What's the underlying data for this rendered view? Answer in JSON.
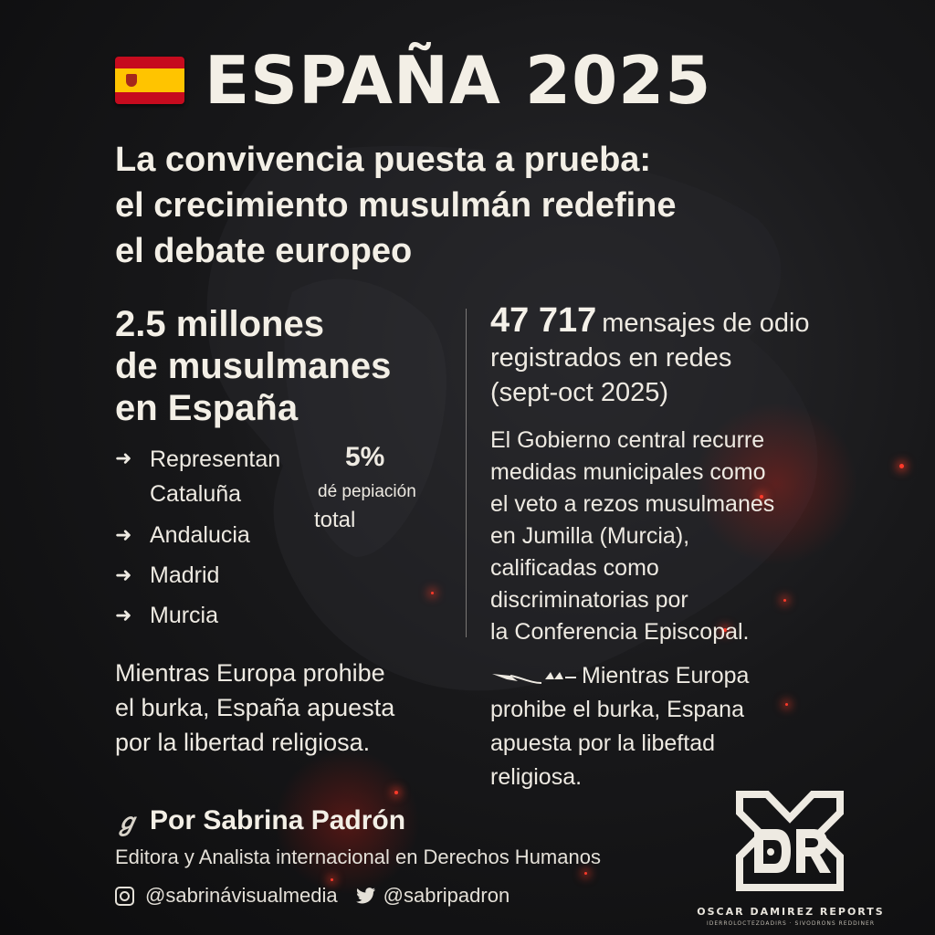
{
  "colors": {
    "background": "#111113",
    "text": "#f3efe6",
    "ember": "#ff3a2a",
    "flag_red": "#c60b1e",
    "flag_yellow": "#ffc400"
  },
  "header": {
    "flag_icon": "spain-flag-icon",
    "title": "ESPAÑA 2025",
    "subtitle_lines": [
      "La convivencia puesta a prueba:",
      "el crecimiento musulmán redefine",
      "el debate europeo"
    ]
  },
  "left": {
    "stat_lines": [
      "2.5 millones",
      "de musulmanes",
      "en España"
    ],
    "regions": [
      {
        "icon": "arrow-right-icon",
        "lines": [
          "Representan",
          "Cataluña"
        ]
      },
      {
        "icon": "arrow-right-icon",
        "lines": [
          "Andalucia"
        ]
      },
      {
        "icon": "arrow-right-icon",
        "lines": [
          "Madrid"
        ]
      },
      {
        "icon": "arrow-right-icon",
        "lines": [
          "Murcia"
        ]
      }
    ],
    "percentage": {
      "value": "5%",
      "label": "dé pepiación",
      "label2": "total"
    },
    "closing_lines": [
      "Mientras Europa prohibe",
      "el burka, España apuesta",
      "por la libertad religiosa."
    ]
  },
  "right": {
    "hate_number": "47 717",
    "hate_lines": [
      "mensajes de odio",
      "registrados en redes",
      "(sept-oct 2025)"
    ],
    "gov_lines": [
      "El Gobierno central recurre",
      "medidas municipales como",
      "el veto a rezos musulmanes",
      "en Jumilla (Murcia),",
      "calificadas como",
      "discriminatorias por",
      "la Conferencia Episcopal."
    ],
    "closing_icon": "bird-flourish-icon",
    "closing_lines": [
      "Mientras Europa",
      "prohibe el burka, Espana",
      "apuesta por la libeftad",
      "religiosa."
    ]
  },
  "footer": {
    "signature_icon": "signature-icon",
    "signature_glyph": "ℊ",
    "byline": "Por Sabrina Padrón",
    "role": "Editora y Analista internacional en Derechos Humanos",
    "socials": [
      {
        "icon": "instagram-icon",
        "handle": "@sabrinávisualmedia"
      },
      {
        "icon": "twitter-icon",
        "handle": "@sabripadron"
      }
    ]
  },
  "brand": {
    "logo_icon": "dr-monogram-logo",
    "name": "OSCAR DAMIREZ REPORTS",
    "tagline": "IDERROLOCTEZDADIRS · SIVODRONS REDDINER"
  }
}
